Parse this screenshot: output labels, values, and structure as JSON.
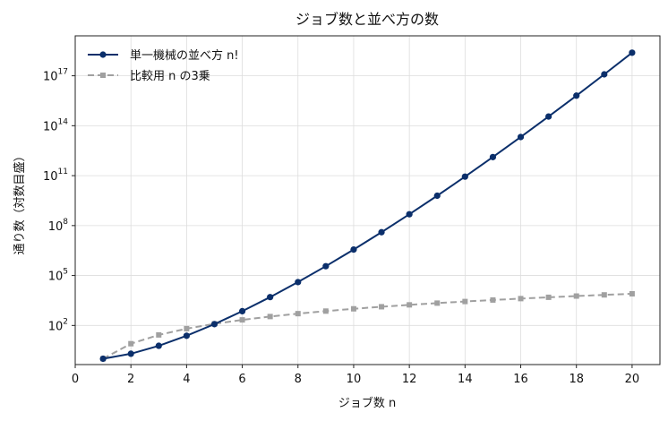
{
  "chart_data": {
    "type": "line",
    "title": "ジョブ数と並べ方の数",
    "xlabel": "ジョブ数 n",
    "ylabel": "通り数（対数目盛）",
    "xlim": [
      0,
      21
    ],
    "ylim_log10": [
      -0.35,
      19.4
    ],
    "y_scale": "log",
    "grid": true,
    "legend_position": "top-left",
    "x_ticks": [
      0,
      2,
      4,
      6,
      8,
      10,
      12,
      14,
      16,
      18,
      20
    ],
    "y_ticks_exponent": [
      2,
      5,
      8,
      11,
      14,
      17
    ],
    "y_tick_base": "10",
    "x": [
      1,
      2,
      3,
      4,
      5,
      6,
      7,
      8,
      9,
      10,
      11,
      12,
      13,
      14,
      15,
      16,
      17,
      18,
      19,
      20
    ],
    "series": [
      {
        "name": "単一機械の並べ方 n!",
        "color": "#0b2f6b",
        "marker": "circle",
        "dash": "solid",
        "values": [
          1,
          2,
          6,
          24,
          120,
          720,
          5040,
          40320,
          362880,
          3628800,
          39916800,
          479001600,
          6227020800,
          87178291200,
          1307674368000,
          20922789888000,
          355687428096000,
          6402373705728000,
          121645100408832000,
          2432902008176640000
        ]
      },
      {
        "name": "比較用 n の3乗",
        "color": "#a0a0a0",
        "marker": "square",
        "dash": "dashed",
        "values": [
          1,
          8,
          27,
          64,
          125,
          216,
          343,
          512,
          729,
          1000,
          1331,
          1728,
          2197,
          2744,
          3375,
          4096,
          4913,
          5832,
          6859,
          8000
        ]
      }
    ]
  }
}
